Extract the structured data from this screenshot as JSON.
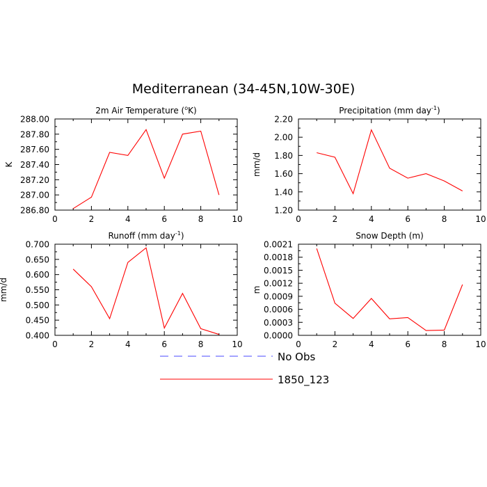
{
  "figure": {
    "title": "Mediterranean (34-45N,10W-30E)"
  },
  "legend": {
    "items": [
      {
        "label": "No Obs",
        "color": "#4a4aff",
        "style": "dashed"
      },
      {
        "label": "1850_123",
        "color": "#ff0000",
        "style": "solid"
      }
    ]
  },
  "chart_data": [
    {
      "type": "line",
      "title": "2m Air Temperature (°K)",
      "title_main": "2m Air Temperature (",
      "title_sup": "o",
      "title_tail": "K)",
      "ylabel": "K",
      "xlim": [
        0,
        10
      ],
      "ylim": [
        286.8,
        288.0
      ],
      "xticks": [
        0,
        2,
        4,
        6,
        8,
        10
      ],
      "xticklabels": [
        "0",
        "2",
        "4",
        "6",
        "8",
        "10"
      ],
      "yticks": [
        286.8,
        287.0,
        287.2,
        287.4,
        287.6,
        287.8,
        288.0
      ],
      "yticklabels": [
        "286.80",
        "287.00",
        "287.20",
        "287.40",
        "287.60",
        "287.80",
        "288.00"
      ],
      "series": [
        {
          "name": "1850_123",
          "color": "#ff0000",
          "x": [
            1,
            2,
            3,
            4,
            5,
            6,
            7,
            8,
            9
          ],
          "values": [
            286.82,
            286.97,
            287.56,
            287.52,
            287.86,
            287.22,
            287.8,
            287.84,
            287.0
          ]
        }
      ]
    },
    {
      "type": "line",
      "title": "Precipitation (mm day-1)",
      "title_main": "Precipitation (mm day",
      "title_sup": "-1",
      "title_tail": ")",
      "ylabel": "mm/d",
      "xlim": [
        0,
        10
      ],
      "ylim": [
        1.2,
        2.2
      ],
      "xticks": [
        0,
        2,
        4,
        6,
        8,
        10
      ],
      "xticklabels": [
        "0",
        "2",
        "4",
        "6",
        "8",
        "10"
      ],
      "yticks": [
        1.2,
        1.4,
        1.6,
        1.8,
        2.0,
        2.2
      ],
      "yticklabels": [
        "1.20",
        "1.40",
        "1.60",
        "1.80",
        "2.00",
        "2.20"
      ],
      "series": [
        {
          "name": "1850_123",
          "color": "#ff0000",
          "x": [
            1,
            2,
            3,
            4,
            5,
            6,
            7,
            8,
            9
          ],
          "values": [
            1.83,
            1.78,
            1.38,
            2.08,
            1.66,
            1.55,
            1.6,
            1.52,
            1.41
          ]
        }
      ]
    },
    {
      "type": "line",
      "title": "Runoff (mm day-1)",
      "title_main": "Runoff (mm day",
      "title_sup": "-1",
      "title_tail": ")",
      "ylabel": "mm/d",
      "xlim": [
        0,
        10
      ],
      "ylim": [
        0.4,
        0.7
      ],
      "xticks": [
        0,
        2,
        4,
        6,
        8,
        10
      ],
      "xticklabels": [
        "0",
        "2",
        "4",
        "6",
        "8",
        "10"
      ],
      "yticks": [
        0.4,
        0.45,
        0.5,
        0.55,
        0.6,
        0.65,
        0.7
      ],
      "yticklabels": [
        "0.400",
        "0.450",
        "0.500",
        "0.550",
        "0.600",
        "0.650",
        "0.700"
      ],
      "series": [
        {
          "name": "1850_123",
          "color": "#ff0000",
          "x": [
            1,
            2,
            3,
            4,
            5,
            6,
            7,
            8,
            9
          ],
          "values": [
            0.618,
            0.56,
            0.455,
            0.64,
            0.688,
            0.424,
            0.538,
            0.422,
            0.403
          ]
        }
      ]
    },
    {
      "type": "line",
      "title": "Snow Depth (m)",
      "title_main": "Snow Depth (m)",
      "title_sup": "",
      "title_tail": "",
      "ylabel": "m",
      "xlim": [
        0,
        10
      ],
      "ylim": [
        0.0,
        0.0021
      ],
      "xticks": [
        0,
        2,
        4,
        6,
        8,
        10
      ],
      "xticklabels": [
        "0",
        "2",
        "4",
        "6",
        "8",
        "10"
      ],
      "yticks": [
        0.0,
        0.0003,
        0.0006,
        0.0009,
        0.0012,
        0.0015,
        0.0018,
        0.0021
      ],
      "yticklabels": [
        "0.0000",
        "0.0003",
        "0.0006",
        "0.0009",
        "0.0012",
        "0.0015",
        "0.0018",
        "0.0021"
      ],
      "series": [
        {
          "name": "1850_123",
          "color": "#ff0000",
          "x": [
            1,
            2,
            3,
            4,
            5,
            6,
            7,
            8,
            9
          ],
          "values": [
            0.002,
            0.00074,
            0.00039,
            0.00085,
            0.00038,
            0.00041,
            0.00011,
            0.00012,
            0.00117
          ]
        }
      ]
    }
  ]
}
